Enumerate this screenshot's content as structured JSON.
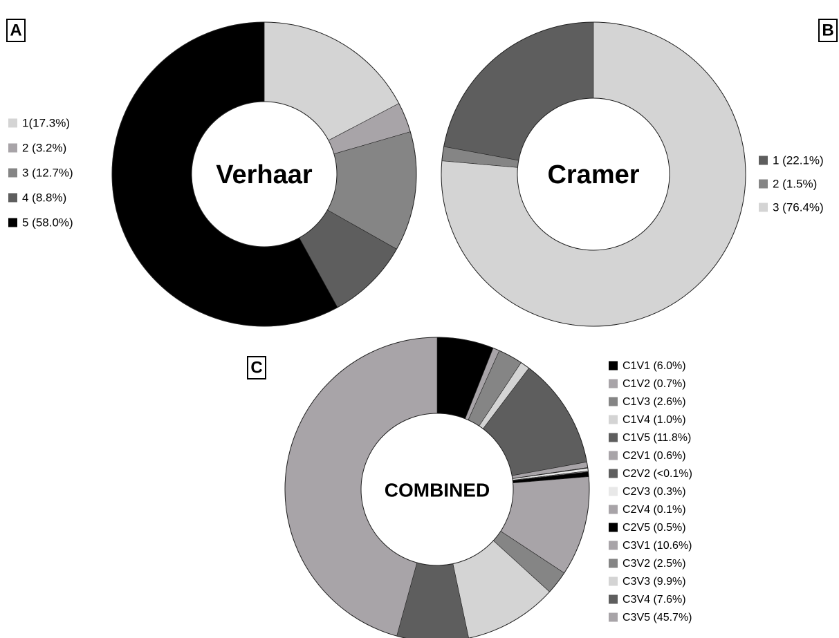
{
  "chart_data": [
    {
      "type": "donut",
      "panel": "A",
      "center_label": "Verhaar",
      "direction": "clockwise",
      "categories": [
        "1(17.3%)",
        "2 (3.2%)",
        "3 (12.7%)",
        "4 (8.8%)",
        "5 (58.0%)"
      ],
      "values": [
        17.3,
        3.2,
        12.7,
        8.8,
        58.0
      ],
      "colors": [
        "#d4d4d4",
        "#a8a4a8",
        "#858585",
        "#5e5e5e",
        "#000000"
      ]
    },
    {
      "type": "donut",
      "panel": "B",
      "center_label": "Cramer",
      "direction": "counterclockwise",
      "categories": [
        "1 (22.1%)",
        "2 (1.5%)",
        "3 (76.4%)"
      ],
      "values": [
        22.1,
        1.5,
        76.4
      ],
      "colors": [
        "#5e5e5e",
        "#858585",
        "#d4d4d4"
      ]
    },
    {
      "type": "donut",
      "panel": "C",
      "center_label": "COMBINED",
      "direction": "clockwise",
      "categories": [
        "C1V1 (6.0%)",
        "C1V2 (0.7%)",
        "C1V3 (2.6%)",
        "C1V4 (1.0%)",
        "C1V5 (11.8%)",
        "C2V1 (0.6%)",
        "C2V2 (<0.1%)",
        "C2V3 (0.3%)",
        "C2V4 (0.1%)",
        "C2V5 (0.5%)",
        "C3V1 (10.6%)",
        "C3V2 (2.5%)",
        "C3V3 (9.9%)",
        "C3V4 (7.6%)",
        "C3V5 (45.7%)"
      ],
      "values": [
        6.0,
        0.7,
        2.6,
        1.0,
        11.8,
        0.6,
        0.05,
        0.3,
        0.1,
        0.5,
        10.6,
        2.5,
        9.9,
        7.6,
        45.7
      ],
      "colors": [
        "#000000",
        "#a8a4a8",
        "#858585",
        "#d4d4d4",
        "#5e5e5e",
        "#a8a4a8",
        "#5e5e5e",
        "#e8e8e8",
        "#a8a4a8",
        "#000000",
        "#a8a4a8",
        "#858585",
        "#d4d4d4",
        "#5e5e5e",
        "#a8a4a8"
      ]
    }
  ]
}
